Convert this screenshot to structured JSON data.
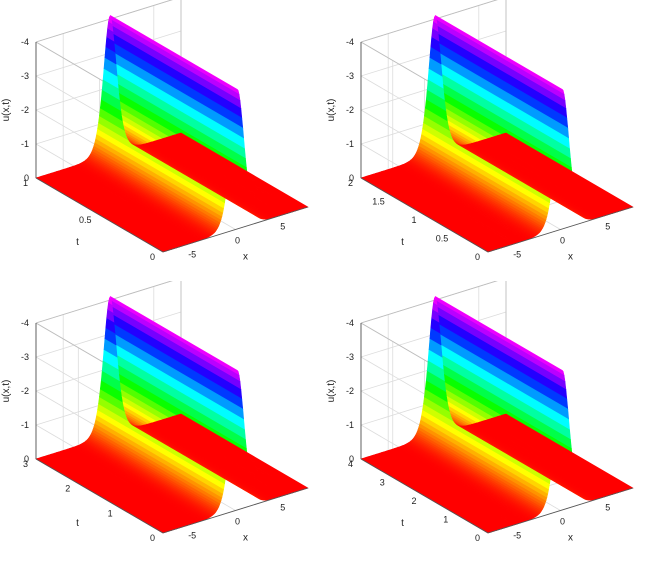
{
  "chart_data": [
    {
      "type": "surface",
      "zlabel": "u(x,t)",
      "xlabel": "x",
      "ylabel": "t",
      "zlim": [
        -4,
        0
      ],
      "zticks": [
        0,
        -1,
        -2,
        -3,
        -4
      ],
      "xlim": [
        -8,
        8
      ],
      "xticks": [
        -5,
        0,
        5
      ],
      "tlim": [
        0,
        1
      ],
      "tticks": [
        0,
        0.5,
        1
      ],
      "surface": {
        "peak": -4.1,
        "center_x": 0.2,
        "width": 1.0,
        "colormap": "hsv",
        "grid": "on"
      }
    },
    {
      "type": "surface",
      "zlabel": "u(x,t)",
      "xlabel": "x",
      "ylabel": "t",
      "zlim": [
        -4,
        0
      ],
      "zticks": [
        0,
        -1,
        -2,
        -3,
        -4
      ],
      "xlim": [
        -8,
        8
      ],
      "xticks": [
        -5,
        0,
        5
      ],
      "tlim": [
        0,
        2
      ],
      "tticks": [
        0,
        0.5,
        1,
        1.5,
        2
      ],
      "surface": {
        "peak": -4.1,
        "center_x": 0.2,
        "width": 1.0,
        "colormap": "hsv",
        "grid": "on"
      }
    },
    {
      "type": "surface",
      "zlabel": "u(x,t)",
      "xlabel": "x",
      "ylabel": "t",
      "zlim": [
        -4,
        0
      ],
      "zticks": [
        0,
        -1,
        -2,
        -3,
        -4
      ],
      "xlim": [
        -8,
        8
      ],
      "xticks": [
        -5,
        0,
        5
      ],
      "tlim": [
        0,
        3
      ],
      "tticks": [
        0,
        1,
        2,
        3
      ],
      "surface": {
        "peak": -4.1,
        "center_x": 0.2,
        "width": 1.0,
        "colormap": "hsv",
        "grid": "on"
      }
    },
    {
      "type": "surface",
      "zlabel": "u(x,t)",
      "xlabel": "x",
      "ylabel": "t",
      "zlim": [
        -4,
        0
      ],
      "zticks": [
        0,
        -1,
        -2,
        -3,
        -4
      ],
      "xlim": [
        -8,
        8
      ],
      "xticks": [
        -5,
        0,
        5
      ],
      "tlim": [
        0,
        4
      ],
      "tticks": [
        0,
        1,
        2,
        3,
        4
      ],
      "surface": {
        "peak": -4.1,
        "center_x": 0.2,
        "width": 1.0,
        "colormap": "hsv",
        "grid": "on"
      }
    }
  ]
}
